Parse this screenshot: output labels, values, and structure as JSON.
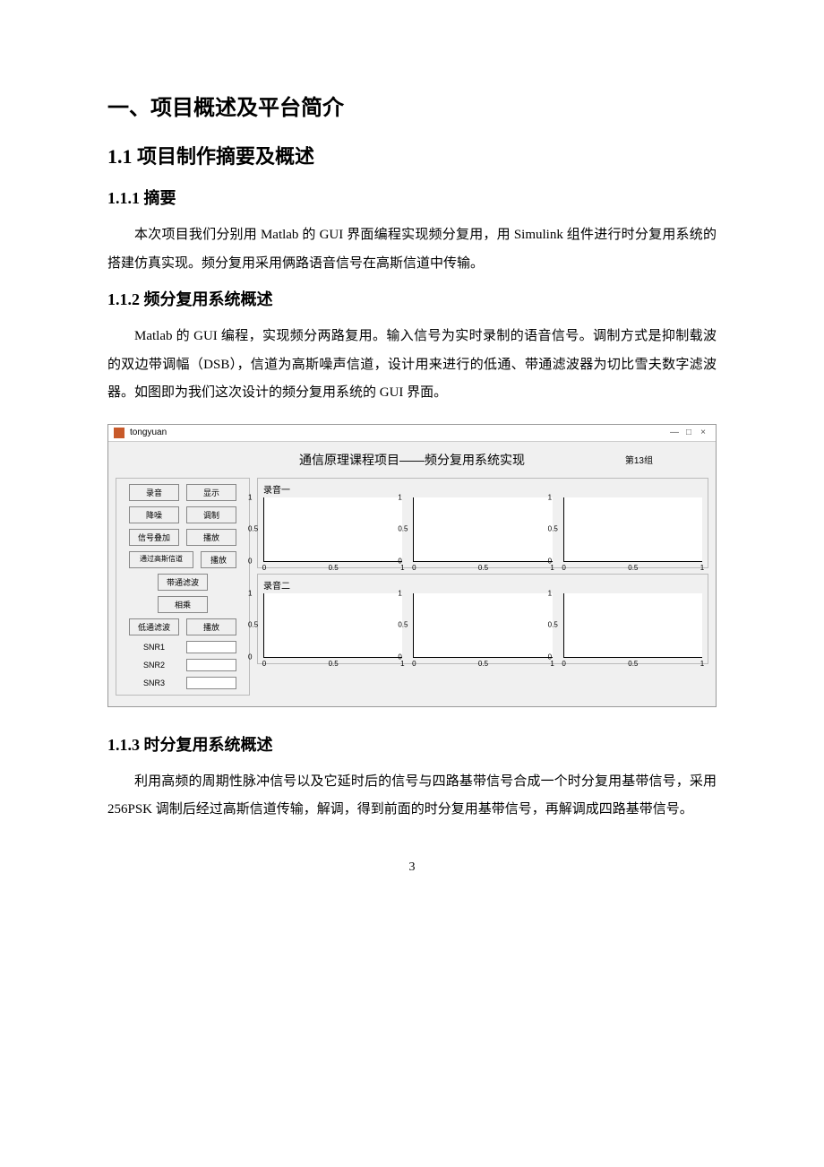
{
  "headings": {
    "h1": "一、项目概述及平台简介",
    "h2": "1.1 项目制作摘要及概述",
    "h3_1": "1.1.1 摘要",
    "h3_2": "1.1.2 频分复用系统概述",
    "h3_3": "1.1.3 时分复用系统概述"
  },
  "paragraphs": {
    "p1": "本次项目我们分别用 Matlab 的 GUI 界面编程实现频分复用，用 Simulink 组件进行时分复用系统的搭建仿真实现。频分复用采用俩路语音信号在高斯信道中传输。",
    "p2": "Matlab 的 GUI 编程，实现频分两路复用。输入信号为实时录制的语音信号。调制方式是抑制载波的双边带调幅（DSB），信道为高斯噪声信道，设计用来进行的低通、带通滤波器为切比雪夫数字滤波器。如图即为我们这次设计的频分复用系统的 GUI 界面。",
    "p3": "利用高频的周期性脉冲信号以及它延时后的信号与四路基带信号合成一个时分复用基带信号，采用 256PSK 调制后经过高斯信道传输，解调，得到前面的时分复用基带信号，再解调成四路基带信号。"
  },
  "page_number": "3",
  "gui": {
    "window_title": "tongyuan",
    "window_controls": {
      "min": "—",
      "max": "□",
      "close": "×"
    },
    "title": "通信原理课程项目——频分复用系统实现",
    "group_label": "第13组",
    "rec1_label": "录音一",
    "rec2_label": "录音二",
    "left_rows": [
      {
        "a": "录音",
        "b": "显示",
        "a_int": true,
        "b_int": true
      },
      {
        "a": "降噪",
        "b": "调制",
        "a_int": true,
        "b_int": true
      },
      {
        "a": "信号叠加",
        "b": "播放",
        "a_int": true,
        "b_int": true
      },
      {
        "a": "通过高斯信道",
        "b": "播放",
        "a_int": true,
        "b_int": true
      }
    ],
    "left_singles": [
      "带通滤波",
      "相乘"
    ],
    "left_row_lowpass": {
      "a": "低通滤波",
      "b": "播放"
    },
    "snr_rows": [
      {
        "label": "SNR1"
      },
      {
        "label": "SNR2"
      },
      {
        "label": "SNR3"
      }
    ],
    "chart": {
      "ylim": [
        0,
        1
      ],
      "xlim": [
        0,
        1
      ],
      "yticks": [
        0,
        0.5,
        1
      ],
      "xticks": [
        0,
        0.5,
        1
      ],
      "background_color": "#ffffff",
      "axis_color": "#000000",
      "tick_fontsize": 8
    },
    "colors": {
      "window_bg": "#f0f0f0",
      "border": "#bbbbbb",
      "button_bg": "#efefef",
      "button_border": "#888888",
      "field_bg": "#ffffff",
      "app_icon": "#c85a2a"
    }
  }
}
